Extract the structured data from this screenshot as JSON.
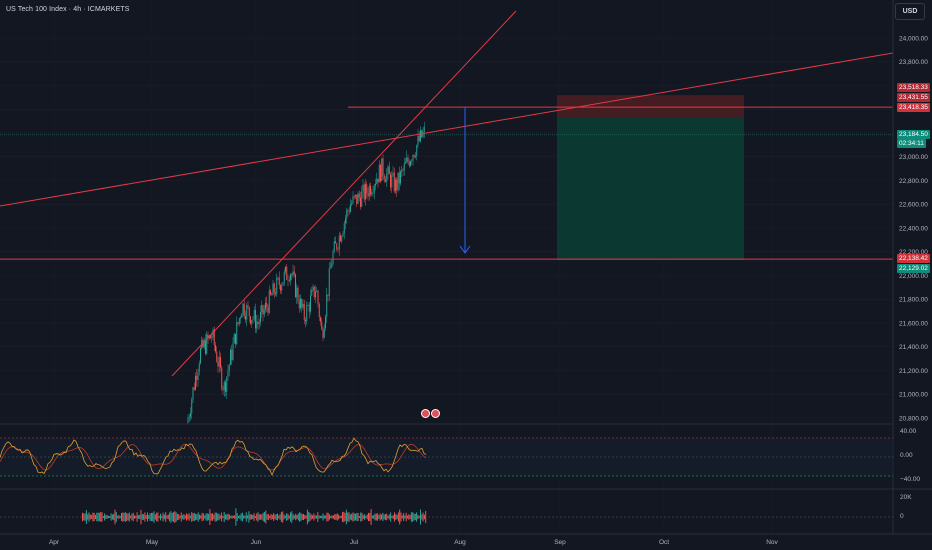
{
  "header": {
    "ticker_title": "US Tech 100 Index · 4h · ICMARKETS",
    "currency_button": "USD"
  },
  "colors": {
    "background": "#131722",
    "up_candle": "#26a69a",
    "down_candle": "#ef5350",
    "trend_line": "#e53945",
    "target_arrow": "#2962ff",
    "profit_zone": "#0b3a33",
    "loss_zone": "#4a1e24"
  },
  "price_axis": {
    "ticks": [
      "24,000.00",
      "23,800.00",
      "23,600.00",
      "23,400.00",
      "23,200.00",
      "23,000.00",
      "22,800.00",
      "22,600.00",
      "22,400.00",
      "22,200.00",
      "22,000.00",
      "21,800.00",
      "21,600.00",
      "21,400.00",
      "21,200.00",
      "21,000.00",
      "20,800.00"
    ]
  },
  "price_tags": {
    "stop_level": "23,518.33",
    "position_level": "23,431.55",
    "resistance_line": "23,418.35",
    "last_price": "23,184.50",
    "countdown": "02:34:11",
    "support_line": "22,138.42",
    "target_level": "22,129.02"
  },
  "time_axis": {
    "labels": [
      "Apr",
      "May",
      "Jun",
      "Jul",
      "Aug",
      "Sep",
      "Oct",
      "Nov"
    ]
  },
  "oscillator": {
    "levels": [
      "40.00",
      "0.00",
      "−40.00"
    ]
  },
  "volume": {
    "levels": [
      "20K",
      "0"
    ]
  },
  "icons": [
    "event-marker-icon",
    "event-marker-icon",
    "arrow-down-icon"
  ],
  "chart_data": {
    "type": "candlestick",
    "symbol": "US Tech 100 Index",
    "interval": "4h",
    "x_range": [
      "Apr",
      "Nov"
    ],
    "y_range": [
      20700,
      24100
    ],
    "price_path": [
      {
        "date": "May 12",
        "close": 20800
      },
      {
        "date": "May 15",
        "close": 21350
      },
      {
        "date": "May 20",
        "close": 21500
      },
      {
        "date": "May 23",
        "close": 21050
      },
      {
        "date": "May 28",
        "close": 21750
      },
      {
        "date": "Jun 3",
        "close": 21600
      },
      {
        "date": "Jun 10",
        "close": 21900
      },
      {
        "date": "Jun 13",
        "close": 22050
      },
      {
        "date": "Jun 18",
        "close": 21650
      },
      {
        "date": "Jun 23",
        "close": 21900
      },
      {
        "date": "Jun 27",
        "close": 21500
      },
      {
        "date": "Jun 30",
        "close": 22150
      },
      {
        "date": "Jul 3",
        "close": 22600
      },
      {
        "date": "Jul 8",
        "close": 22700
      },
      {
        "date": "Jul 11",
        "close": 22900
      },
      {
        "date": "Jul 15",
        "close": 22750
      },
      {
        "date": "Jul 18",
        "close": 23000
      },
      {
        "date": "Jul 22",
        "close": 23200
      }
    ],
    "horizontal_lines": [
      23418.35,
      22138.42
    ],
    "short_position": {
      "entry": 23431.55,
      "stop": 23518.33,
      "target": 22129.02
    },
    "oscillator_range": [
      -40,
      40
    ],
    "volume_range": [
      0,
      20000
    ],
    "grid": true
  }
}
